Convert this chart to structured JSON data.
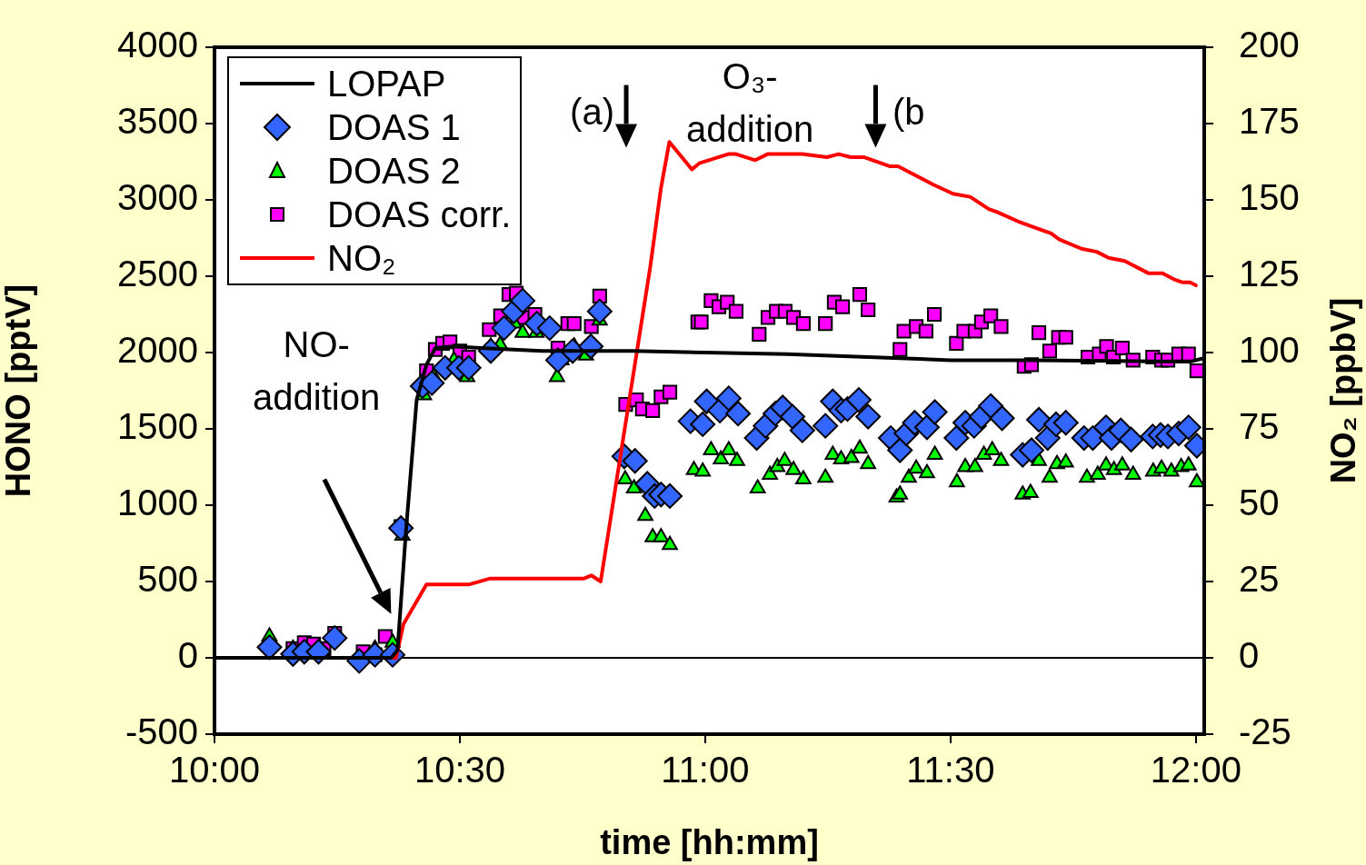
{
  "chart_data": {
    "type": "line",
    "xlabel": "time [hh:mm]",
    "ylabel": "HONO [pptV]",
    "y2label": "NO₂ [ppbV]",
    "xlim": [
      10,
      12.017
    ],
    "xticks": [
      {
        "value": 10,
        "label": "10:00"
      },
      {
        "value": 10.5,
        "label": "10:30"
      },
      {
        "value": 11,
        "label": "11:00"
      },
      {
        "value": 11.5,
        "label": "11:30"
      },
      {
        "value": 12,
        "label": "12:00"
      }
    ],
    "ylim": [
      -500,
      4000
    ],
    "yticks": [
      -500,
      0,
      500,
      1000,
      1500,
      2000,
      2500,
      3000,
      3500,
      4000
    ],
    "y2lim": [
      -25,
      200
    ],
    "y2ticks": [
      -25,
      0,
      25,
      50,
      75,
      100,
      125,
      150,
      175,
      200
    ],
    "grid": false,
    "legend": "top left",
    "ref_lines": [
      {
        "axis": "y",
        "value": 0,
        "color": "#000000"
      }
    ],
    "annotations": [
      "NO-\naddition",
      "(a)",
      "O₃-\naddition",
      "(b"
    ],
    "series": [
      {
        "name": "LOPAP",
        "type": "line",
        "color": "#000000",
        "marker": "none",
        "x": [
          10,
          10.082,
          10.36,
          10.373,
          10.39,
          10.412,
          10.432,
          10.45,
          10.485,
          10.542,
          10.667,
          10.852,
          11,
          11.167,
          11.333,
          11.5,
          11.667,
          11.833,
          11.988,
          12.012
        ],
        "values": [
          0,
          0,
          0,
          50,
          820,
          1690,
          1920,
          2030,
          2040,
          2030,
          2010,
          2010,
          2000,
          1990,
          1970,
          1950,
          1950,
          1945,
          1940,
          1960
        ]
      },
      {
        "name": "DOAS 1",
        "type": "scatter",
        "color": "#3366ff",
        "marker": "diamond",
        "x": [
          10.112,
          10.16,
          10.183,
          10.212,
          10.245,
          10.295,
          10.327,
          10.363,
          10.38,
          10.424,
          10.443,
          10.47,
          10.498,
          10.518,
          10.563,
          10.59,
          10.61,
          10.628,
          10.657,
          10.683,
          10.7,
          10.73,
          10.767,
          10.785,
          10.835,
          10.857,
          10.882,
          10.897,
          10.91,
          10.928,
          10.97,
          10.995,
          11.003,
          11.03,
          11.048,
          11.067,
          11.105,
          11.123,
          11.143,
          11.158,
          11.178,
          11.198,
          11.245,
          11.26,
          11.277,
          11.29,
          11.313,
          11.332,
          11.378,
          11.397,
          11.41,
          11.427,
          11.452,
          11.468,
          11.512,
          11.53,
          11.548,
          11.563,
          11.582,
          11.605,
          11.647,
          11.665,
          11.68,
          11.698,
          11.715,
          11.735,
          11.772,
          11.79,
          11.817,
          11.828,
          11.847,
          11.868,
          11.912,
          11.928,
          11.943,
          11.965,
          11.985,
          12.002
        ],
        "values": [
          70,
          25,
          40,
          40,
          130,
          -20,
          20,
          20,
          850,
          1780,
          1800,
          1900,
          1900,
          1900,
          2010,
          2160,
          2270,
          2340,
          2190,
          2160,
          1950,
          2010,
          2040,
          2270,
          1320,
          1290,
          1140,
          1060,
          1070,
          1060,
          1550,
          1530,
          1680,
          1620,
          1700,
          1600,
          1440,
          1520,
          1600,
          1640,
          1580,
          1490,
          1520,
          1680,
          1620,
          1630,
          1690,
          1580,
          1440,
          1360,
          1470,
          1540,
          1510,
          1610,
          1440,
          1540,
          1520,
          1580,
          1650,
          1570,
          1330,
          1360,
          1560,
          1440,
          1530,
          1540,
          1440,
          1440,
          1510,
          1440,
          1490,
          1430,
          1450,
          1460,
          1450,
          1470,
          1510,
          1390
        ]
      },
      {
        "name": "DOAS 2",
        "type": "scatter",
        "color": "#00ff00",
        "marker": "triangle",
        "x": [
          10.112,
          10.16,
          10.327,
          10.363,
          10.383,
          10.427,
          10.447,
          10.488,
          10.515,
          10.563,
          10.582,
          10.611,
          10.628,
          10.656,
          10.698,
          10.707,
          10.733,
          10.757,
          10.785,
          10.837,
          10.855,
          10.878,
          10.893,
          10.91,
          10.928,
          10.977,
          10.995,
          11.012,
          11.032,
          11.048,
          11.065,
          11.107,
          11.132,
          11.147,
          11.162,
          11.18,
          11.2,
          11.245,
          11.26,
          11.277,
          11.298,
          11.315,
          11.332,
          11.39,
          11.397,
          11.415,
          11.43,
          11.452,
          11.468,
          11.513,
          11.53,
          11.55,
          11.568,
          11.585,
          11.603,
          11.647,
          11.663,
          11.68,
          11.702,
          11.717,
          11.735,
          11.778,
          11.8,
          11.817,
          11.833,
          11.85,
          11.872,
          11.913,
          11.93,
          11.95,
          11.97,
          11.985,
          12.002
        ],
        "values": [
          140,
          60,
          60,
          100,
          800,
          1720,
          1840,
          1950,
          1840,
          2040,
          2050,
          2190,
          2130,
          2130,
          1840,
          1950,
          2040,
          1980,
          2210,
          1170,
          1110,
          930,
          790,
          790,
          740,
          1230,
          1220,
          1360,
          1300,
          1360,
          1290,
          1110,
          1200,
          1250,
          1290,
          1230,
          1170,
          1180,
          1330,
          1300,
          1310,
          1370,
          1270,
          1050,
          1070,
          1180,
          1240,
          1210,
          1330,
          1150,
          1250,
          1250,
          1330,
          1360,
          1290,
          1070,
          1080,
          1290,
          1180,
          1270,
          1280,
          1180,
          1200,
          1260,
          1230,
          1260,
          1200,
          1220,
          1240,
          1220,
          1250,
          1260,
          1150
        ]
      },
      {
        "name": "DOAS corr.",
        "type": "scatter",
        "color": "#ff00ff",
        "marker": "square",
        "x": [
          10.16,
          10.183,
          10.202,
          10.223,
          10.245,
          10.303,
          10.327,
          10.348,
          10.38,
          10.432,
          10.45,
          10.465,
          10.48,
          10.5,
          10.518,
          10.56,
          10.583,
          10.6,
          10.615,
          10.63,
          10.653,
          10.7,
          10.72,
          10.733,
          10.768,
          10.785,
          10.838,
          10.86,
          10.872,
          10.893,
          10.91,
          10.928,
          10.985,
          10.992,
          11.012,
          11.028,
          11.045,
          11.063,
          11.11,
          11.128,
          11.145,
          11.163,
          11.18,
          11.2,
          11.245,
          11.263,
          11.28,
          11.315,
          11.332,
          11.397,
          11.405,
          11.43,
          11.45,
          11.467,
          11.512,
          11.527,
          11.55,
          11.563,
          11.582,
          11.603,
          11.65,
          11.665,
          11.68,
          11.702,
          11.72,
          11.735,
          11.78,
          11.803,
          11.818,
          11.832,
          11.85,
          11.872,
          11.912,
          11.93,
          11.943,
          11.965,
          11.985,
          12.002
        ],
        "values": [
          60,
          100,
          90,
          60,
          160,
          40,
          20,
          140,
          860,
          1880,
          2020,
          2060,
          2070,
          2010,
          1970,
          2150,
          2240,
          2380,
          2390,
          2230,
          2250,
          2030,
          2190,
          2190,
          2170,
          2370,
          1660,
          1690,
          1630,
          1620,
          1710,
          1740,
          2200,
          2200,
          2340,
          2300,
          2330,
          2270,
          2120,
          2230,
          2270,
          2270,
          2230,
          2190,
          2190,
          2330,
          2300,
          2380,
          2280,
          2020,
          2140,
          2170,
          2140,
          2250,
          2060,
          2140,
          2140,
          2200,
          2240,
          2170,
          1910,
          1920,
          2130,
          2010,
          2100,
          2100,
          1970,
          1990,
          2040,
          1970,
          2030,
          1950,
          1970,
          1950,
          1950,
          1990,
          1990,
          1880
        ]
      },
      {
        "name": "NO₂",
        "type": "line",
        "axis": "y2",
        "color": "#ff0000",
        "marker": "none",
        "x": [
          10.105,
          10.37,
          10.385,
          10.432,
          10.518,
          10.562,
          10.753,
          10.768,
          10.787,
          10.888,
          10.91,
          10.927,
          10.973,
          10.988,
          11.047,
          11.063,
          11.102,
          11.127,
          11.198,
          11.248,
          11.272,
          11.297,
          11.323,
          11.377,
          11.393,
          11.417,
          11.465,
          11.505,
          11.54,
          11.578,
          11.595,
          11.637,
          11.67,
          11.705,
          11.722,
          11.767,
          11.798,
          11.822,
          11.855,
          11.903,
          11.932,
          11.955,
          11.972,
          11.988,
          12
        ],
        "values": [
          0,
          0,
          11,
          24,
          24,
          26,
          26,
          27,
          25,
          128,
          154,
          169,
          160,
          162,
          165,
          165,
          163,
          165,
          165,
          164,
          165,
          164,
          164,
          161,
          161,
          159,
          155,
          152,
          151,
          147,
          146,
          143,
          141,
          139,
          137,
          134,
          133,
          131,
          130,
          126,
          126,
          124,
          123,
          123,
          122
        ]
      }
    ]
  }
}
